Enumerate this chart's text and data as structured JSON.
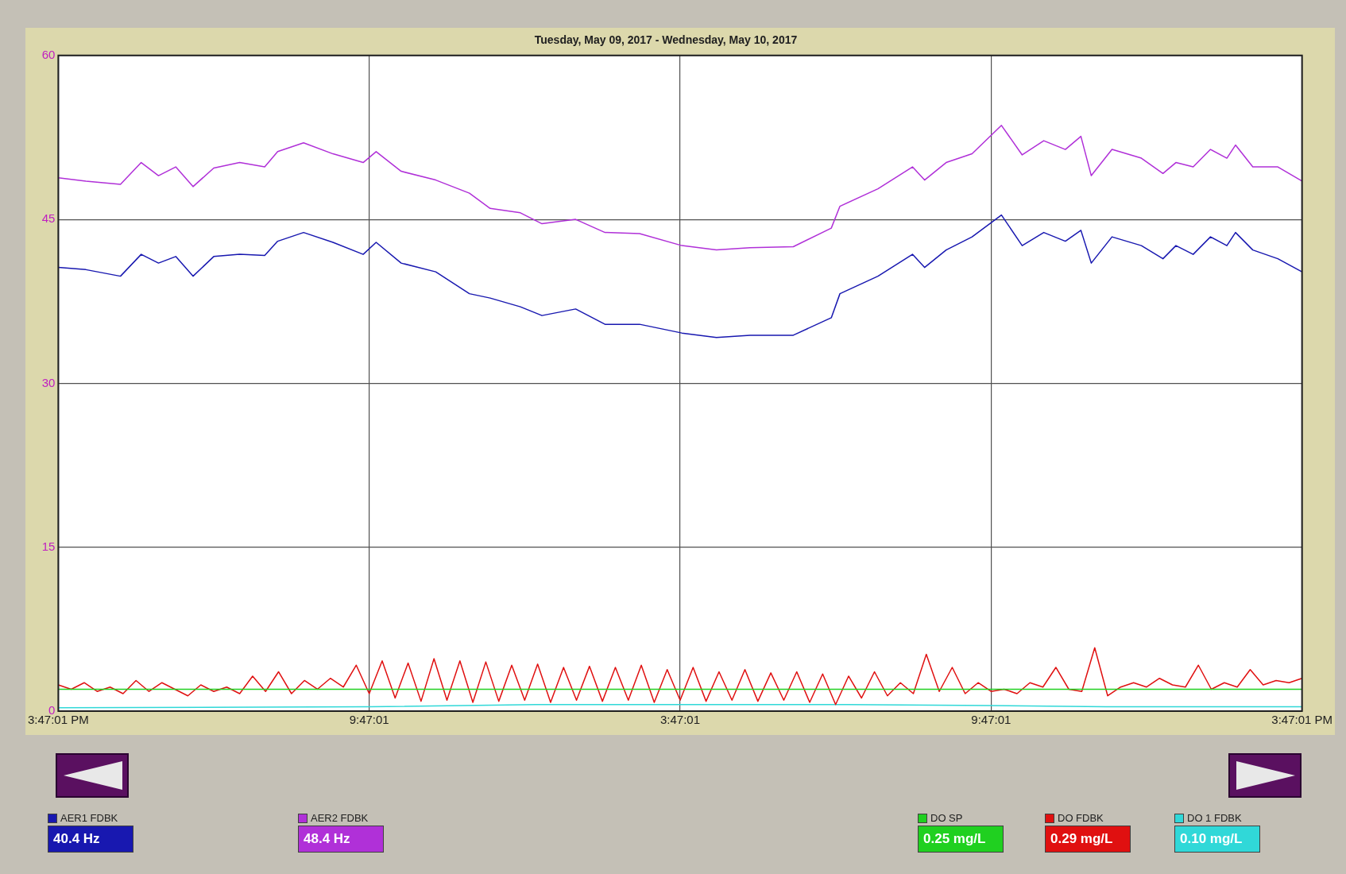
{
  "chart_data": {
    "type": "line",
    "title": "Tuesday, May 09, 2017 - Wednesday, May 10, 2017",
    "xlim": [
      "2017-05-09T15:47",
      "2017-05-10T15:47"
    ],
    "xticks": [
      {
        "value": "2017-05-09T15:47",
        "label": "3:47:01 PM"
      },
      {
        "value": "2017-05-09T21:47",
        "label": "9:47:01"
      },
      {
        "value": "2017-05-10T03:47",
        "label": "3:47:01"
      },
      {
        "value": "2017-05-10T09:47",
        "label": "9:47:01"
      },
      {
        "value": "2017-05-10T15:47",
        "label": "3:47:01 PM"
      }
    ],
    "ylim": [
      0,
      60
    ],
    "yticks": [
      0,
      15,
      30,
      45,
      60
    ],
    "grid": true,
    "legend": "bottom",
    "marker": "none",
    "line_style": "solid",
    "annotations": [
      "40.4 Hz",
      "48.4 Hz",
      "0.25 mg/L",
      "0.29 mg/L",
      "0.10 mg/L"
    ],
    "x": [
      "2017-05-09T15:47",
      "2017-05-09T16:19",
      "2017-05-09T16:59",
      "2017-05-09T17:23",
      "2017-05-09T17:43",
      "2017-05-09T18:03",
      "2017-05-09T18:23",
      "2017-05-09T18:47",
      "2017-05-09T19:17",
      "2017-05-09T19:46",
      "2017-05-09T20:01",
      "2017-05-09T20:31",
      "2017-05-09T21:05",
      "2017-05-09T21:40",
      "2017-05-09T21:55",
      "2017-05-09T22:24",
      "2017-05-09T23:04",
      "2017-05-09T23:43",
      "2017-05-10T00:07",
      "2017-05-10T00:42",
      "2017-05-10T01:07",
      "2017-05-10T01:46",
      "2017-05-10T02:20",
      "2017-05-10T03:00",
      "2017-05-10T03:49",
      "2017-05-10T04:29",
      "2017-05-10T05:08",
      "2017-05-10T05:58",
      "2017-05-10T06:42",
      "2017-05-10T06:52",
      "2017-05-10T07:36",
      "2017-05-10T08:16",
      "2017-05-10T08:30",
      "2017-05-10T08:55",
      "2017-05-10T09:25",
      "2017-05-10T09:59",
      "2017-05-10T10:23",
      "2017-05-10T10:48",
      "2017-05-10T11:13",
      "2017-05-10T11:31",
      "2017-05-10T11:43",
      "2017-05-10T12:07",
      "2017-05-10T12:41",
      "2017-05-10T13:06",
      "2017-05-10T13:21",
      "2017-05-10T13:41",
      "2017-05-10T14:01",
      "2017-05-10T14:20",
      "2017-05-10T14:30",
      "2017-05-10T14:50",
      "2017-05-10T15:19",
      "2017-05-10T15:47"
    ],
    "series": [
      {
        "name": "AER1 FDBK",
        "color": "#1818b0",
        "values": [
          40.6,
          40.4,
          39.8,
          41.8,
          41,
          41.6,
          39.8,
          41.6,
          41.8,
          41.7,
          43,
          43.8,
          42.9,
          41.8,
          42.9,
          41,
          40.2,
          38.2,
          37.8,
          37,
          36.2,
          36.8,
          35.4,
          35.4,
          34.6,
          34.2,
          34.4,
          34.4,
          36,
          38.2,
          39.8,
          41.8,
          40.6,
          42.2,
          43.4,
          45.4,
          42.6,
          43.8,
          43,
          44,
          41,
          43.4,
          42.6,
          41.4,
          42.6,
          41.8,
          43.4,
          42.6,
          43.8,
          42.2,
          41.4,
          40.2
        ]
      },
      {
        "name": "AER2 FDBK",
        "color": "#b030d8",
        "values": [
          48.8,
          48.5,
          48.2,
          50.2,
          49,
          49.8,
          48,
          49.7,
          50.2,
          49.8,
          51.2,
          52,
          51,
          50.2,
          51.2,
          49.4,
          48.6,
          47.4,
          46,
          45.6,
          44.6,
          45,
          43.8,
          43.7,
          42.6,
          42.2,
          42.4,
          42.5,
          44.2,
          46.2,
          47.8,
          49.8,
          48.6,
          50.2,
          51,
          53.6,
          50.9,
          52.2,
          51.4,
          52.6,
          49,
          51.4,
          50.6,
          49.2,
          50.2,
          49.8,
          51.4,
          50.6,
          51.8,
          49.8,
          49.8,
          48.5
        ]
      },
      {
        "name": "DO SP",
        "color": "#20d020",
        "x": [
          "2017-05-09T15:47",
          "2017-05-10T15:47"
        ],
        "values": [
          2.0,
          2.0
        ]
      },
      {
        "name": "DO FDBK",
        "color": "#e01010",
        "x": [
          "2017-05-09T15:47",
          "2017-05-09T16:02",
          "2017-05-09T16:17",
          "2017-05-09T16:32",
          "2017-05-09T16:47",
          "2017-05-09T17:02",
          "2017-05-09T17:17",
          "2017-05-09T17:32",
          "2017-05-09T17:47",
          "2017-05-09T18:02",
          "2017-05-09T18:17",
          "2017-05-09T18:32",
          "2017-05-09T18:47",
          "2017-05-09T19:02",
          "2017-05-09T19:17",
          "2017-05-09T19:32",
          "2017-05-09T19:47",
          "2017-05-09T20:02",
          "2017-05-09T20:17",
          "2017-05-09T20:32",
          "2017-05-09T20:47",
          "2017-05-09T21:02",
          "2017-05-09T21:17",
          "2017-05-09T21:32",
          "2017-05-09T21:47",
          "2017-05-09T22:02",
          "2017-05-09T22:17",
          "2017-05-09T22:32",
          "2017-05-09T22:47",
          "2017-05-09T23:02",
          "2017-05-09T23:17",
          "2017-05-09T23:32",
          "2017-05-09T23:47",
          "2017-05-10T00:02",
          "2017-05-10T00:17",
          "2017-05-10T00:32",
          "2017-05-10T00:47",
          "2017-05-10T01:02",
          "2017-05-10T01:17",
          "2017-05-10T01:32",
          "2017-05-10T01:47",
          "2017-05-10T02:02",
          "2017-05-10T02:17",
          "2017-05-10T02:32",
          "2017-05-10T02:47",
          "2017-05-10T03:02",
          "2017-05-10T03:17",
          "2017-05-10T03:32",
          "2017-05-10T03:47",
          "2017-05-10T04:02",
          "2017-05-10T04:17",
          "2017-05-10T04:32",
          "2017-05-10T04:47",
          "2017-05-10T05:02",
          "2017-05-10T05:17",
          "2017-05-10T05:32",
          "2017-05-10T05:47",
          "2017-05-10T06:02",
          "2017-05-10T06:17",
          "2017-05-10T06:32",
          "2017-05-10T06:47",
          "2017-05-10T07:02",
          "2017-05-10T07:17",
          "2017-05-10T07:32",
          "2017-05-10T07:47",
          "2017-05-10T08:02",
          "2017-05-10T08:17",
          "2017-05-10T08:32",
          "2017-05-10T08:47",
          "2017-05-10T09:02",
          "2017-05-10T09:17",
          "2017-05-10T09:32",
          "2017-05-10T09:47",
          "2017-05-10T10:02",
          "2017-05-10T10:17",
          "2017-05-10T10:32",
          "2017-05-10T10:47",
          "2017-05-10T11:02",
          "2017-05-10T11:17",
          "2017-05-10T11:32",
          "2017-05-10T11:47",
          "2017-05-10T12:02",
          "2017-05-10T12:17",
          "2017-05-10T12:32",
          "2017-05-10T12:47",
          "2017-05-10T13:02",
          "2017-05-10T13:17",
          "2017-05-10T13:32",
          "2017-05-10T13:47",
          "2017-05-10T14:02",
          "2017-05-10T14:17",
          "2017-05-10T14:32",
          "2017-05-10T14:47",
          "2017-05-10T15:02",
          "2017-05-10T15:17",
          "2017-05-10T15:32",
          "2017-05-10T15:47"
        ],
        "values": [
          2.4,
          2.0,
          2.6,
          1.8,
          2.2,
          1.6,
          2.8,
          1.8,
          2.6,
          2.0,
          1.4,
          2.4,
          1.8,
          2.2,
          1.6,
          3.2,
          1.8,
          3.6,
          1.6,
          2.8,
          2.0,
          3.0,
          2.2,
          4.2,
          1.6,
          4.6,
          1.2,
          4.4,
          0.9,
          4.8,
          1.0,
          4.6,
          0.8,
          4.5,
          0.9,
          4.2,
          1.0,
          4.3,
          0.8,
          4.0,
          1.0,
          4.1,
          0.9,
          4.0,
          1.0,
          4.2,
          0.8,
          3.8,
          1.0,
          4.0,
          0.9,
          3.6,
          1.0,
          3.8,
          0.9,
          3.5,
          1.0,
          3.6,
          0.8,
          3.4,
          0.6,
          3.2,
          1.2,
          3.6,
          1.4,
          2.6,
          1.6,
          5.2,
          1.8,
          4.0,
          1.6,
          2.6,
          1.8,
          2.0,
          1.6,
          2.6,
          2.2,
          4.0,
          2.0,
          1.8,
          5.8,
          1.4,
          2.2,
          2.6,
          2.2,
          3.0,
          2.4,
          2.2,
          4.2,
          2.0,
          2.6,
          2.2,
          3.8,
          2.4,
          2.8,
          2.6,
          3.0
        ]
      },
      {
        "name": "DO 1 FDBK",
        "color": "#30d8d8",
        "x": [
          "2017-05-09T15:47",
          "2017-05-09T21:47",
          "2017-05-10T01:00",
          "2017-05-10T03:47",
          "2017-05-10T07:00",
          "2017-05-10T09:47",
          "2017-05-10T12:00",
          "2017-05-10T15:47"
        ],
        "values": [
          0.3,
          0.4,
          0.6,
          0.6,
          0.6,
          0.5,
          0.4,
          0.4
        ]
      }
    ]
  }
}
